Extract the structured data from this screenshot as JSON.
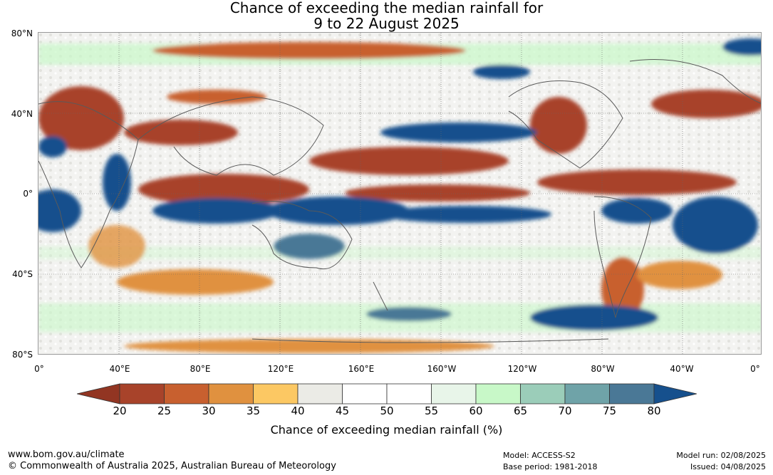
{
  "header": {
    "title_line1": "Chance of exceeding the median rainfall for",
    "title_line2": "9 to 22 August 2025"
  },
  "map": {
    "lat_labels": [
      "80°N",
      "40°N",
      "0°",
      "40°S",
      "80°S"
    ],
    "lon_labels": [
      "0°",
      "40°E",
      "80°E",
      "120°E",
      "160°E",
      "160°W",
      "120°W",
      "80°W",
      "40°W",
      "0°"
    ]
  },
  "legend": {
    "title": "Chance of exceeding median rainfall (%)",
    "ticks": [
      "20",
      "25",
      "30",
      "35",
      "40",
      "45",
      "50",
      "55",
      "60",
      "65",
      "70",
      "75",
      "80"
    ],
    "colors": [
      "#a8432a",
      "#c8602f",
      "#e0913f",
      "#fcc863",
      "#ebebe6",
      "#ffffff",
      "#ffffff",
      "#e8f5e9",
      "#c8f8c8",
      "#9bcdb9",
      "#6fa3a8",
      "#4a7896"
    ],
    "low_color": "#923522",
    "high_color": "#16508d"
  },
  "footer": {
    "website": "www.bom.gov.au/climate",
    "copyright": "© Commonwealth of Australia 2025, Australian Bureau of Meteorology",
    "model": "Model: ACCESS-S2",
    "base_period": "Base period: 1981-2018",
    "model_run": "Model run: 02/08/2025",
    "issued": "Issued: 04/08/2025"
  }
}
